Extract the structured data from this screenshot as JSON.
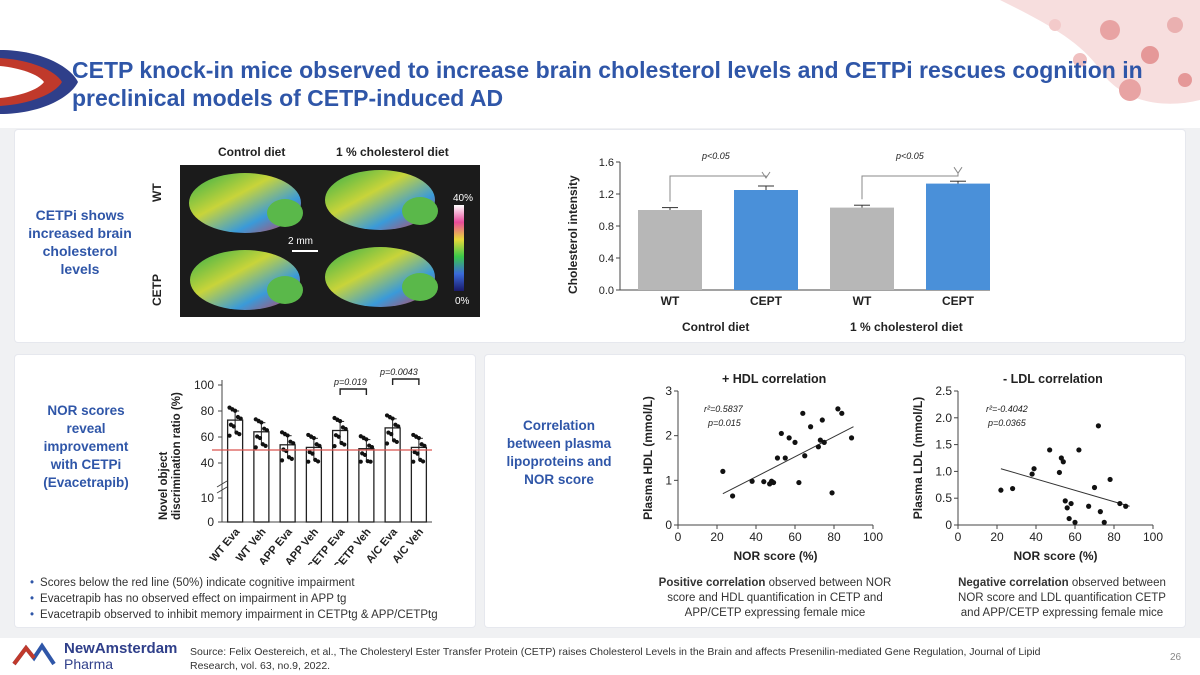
{
  "title": "CETP knock-in mice observed to increase brain cholesterol levels and CETPi rescues cognition in preclinical models of CETP-induced AD",
  "page_number": "26",
  "brand": {
    "line1": "NewAmsterdam",
    "line2": "Pharma"
  },
  "source": "Source: Felix Oestereich, et al., The Cholesteryl Ester Transfer Protein (CETP) raises Cholesterol Levels in the Brain and affects Presenilin-mediated Gene Regulation, Journal of Lipid Research, vol. 63, no.9, 2022.",
  "panel1": {
    "label": "CETPi shows increased brain cholesterol levels",
    "col_control": "Control diet",
    "col_chol": "1 % cholesterol diet",
    "row_wt": "WT",
    "row_cetp": "CETP",
    "scale_bar": "2 mm",
    "color_max": "40%",
    "color_min": "0%"
  },
  "panel2": {
    "ylabel": "Cholesterol intensity",
    "group1": "Control diet",
    "group2": "1 % cholesterol diet",
    "p1": "p<0.05",
    "p2": "p<0.05"
  },
  "panel3": {
    "label": "NOR scores reveal improvement with CETPi (Evacetrapib)",
    "ylabel": "Novel object discrimination ratio (%)",
    "p_a": "p=0.019",
    "p_b": "p=0.0043"
  },
  "panel4": {
    "label": "Correlation between plasma lipoproteins and NOR score",
    "hdl_title": "+ HDL correlation",
    "ldl_title": "- LDL correlation",
    "hdl_r2": "r²=0.5837",
    "hdl_p": "p=0.015",
    "ldl_r2": "r²=-0.4042",
    "ldl_p": "p=0.0365",
    "hdl_caption_bold": "Positive correlation",
    "hdl_caption_rest": " observed between NOR score and HDL quantification in CETP and APP/CETP expressing female mice",
    "ldl_caption_bold": "Negative correlation",
    "ldl_caption_rest": " observed between NOR score and LDL quantification CETP and APP/CETP expressing female mice"
  },
  "bullets": [
    "Scores below the red line (50%) indicate cognitive impairment",
    "Evacetrapib has no observed effect on impairment in APP tg",
    "Evacetrapib observed to inhibit memory impairment in CETPtg & APP/CETPtg"
  ],
  "colors": {
    "title_blue": "#2f56a8",
    "bar_grey": "#b7b7b7",
    "bar_blue": "#4a90d9",
    "red_line": "#d9534f"
  },
  "chart_data": [
    {
      "type": "bar",
      "title": "Brain cholesterol",
      "categories": [
        "WT",
        "CEPT",
        "WT",
        "CEPT"
      ],
      "groups": [
        "Control diet",
        "1 % cholesterol diet"
      ],
      "values": [
        1.0,
        1.25,
        1.03,
        1.33
      ],
      "errors": [
        0.03,
        0.05,
        0.03,
        0.03
      ],
      "ylabel": "Cholesterol intensity",
      "ylim": [
        0,
        1.6
      ],
      "yticks": [
        "0.0",
        "0.4",
        "0.8",
        "1.2",
        "1.6"
      ]
    },
    {
      "type": "bar",
      "title": "NOR scores",
      "categories": [
        "WT Eva",
        "WT Veh",
        "APP Eva",
        "APP Veh",
        "CETP Eva",
        "CETP Veh",
        "A/C Eva",
        "A/C Veh"
      ],
      "values": [
        73,
        64,
        54,
        52,
        65,
        51,
        67,
        52
      ],
      "reference_line": 50,
      "ylabel": "Novel object discrimination ratio (%)",
      "yticks": [
        "0",
        "10",
        "40",
        "60",
        "80",
        "100"
      ]
    },
    {
      "type": "scatter",
      "title": "+ HDL correlation",
      "xlabel": "NOR score (%)",
      "ylabel": "Plasma HDL (mmol/L)",
      "xlim": [
        0,
        100
      ],
      "ylim": [
        0,
        3
      ],
      "xticks": [
        "0",
        "20",
        "40",
        "60",
        "80",
        "100"
      ],
      "yticks": [
        "0",
        "1",
        "2",
        "3"
      ],
      "x": [
        23,
        28,
        38,
        44,
        47,
        48,
        49,
        51,
        53,
        55,
        57,
        60,
        62,
        64,
        65,
        68,
        72,
        73,
        74,
        75,
        79,
        82,
        84,
        89
      ],
      "y": [
        1.2,
        0.65,
        0.98,
        0.97,
        0.92,
        0.98,
        0.95,
        1.5,
        2.05,
        1.5,
        1.95,
        1.85,
        0.95,
        2.5,
        1.55,
        2.2,
        1.75,
        1.9,
        2.35,
        1.85,
        0.72,
        2.6,
        2.5,
        1.95
      ],
      "fit": {
        "x": [
          23,
          90
        ],
        "y": [
          0.7,
          2.2
        ]
      }
    },
    {
      "type": "scatter",
      "title": "- LDL correlation",
      "xlabel": "NOR score (%)",
      "ylabel": "Plasma LDL (mmol/L)",
      "xlim": [
        0,
        100
      ],
      "ylim": [
        0,
        2.5
      ],
      "xticks": [
        "0",
        "20",
        "40",
        "60",
        "80",
        "100"
      ],
      "yticks": [
        "0",
        "0.5",
        "1.0",
        "1.5",
        "2.0",
        "2.5"
      ],
      "x": [
        22,
        28,
        38,
        39,
        47,
        52,
        53,
        54,
        55,
        56,
        57,
        58,
        60,
        62,
        67,
        70,
        72,
        73,
        75,
        78,
        83,
        86
      ],
      "y": [
        0.65,
        0.68,
        0.95,
        1.05,
        1.4,
        0.98,
        1.25,
        1.18,
        0.45,
        0.32,
        0.12,
        0.4,
        0.05,
        1.4,
        0.35,
        0.7,
        1.85,
        0.25,
        0.05,
        0.85,
        0.4,
        0.35
      ],
      "fit": {
        "x": [
          22,
          88
        ],
        "y": [
          1.05,
          0.35
        ]
      }
    }
  ]
}
